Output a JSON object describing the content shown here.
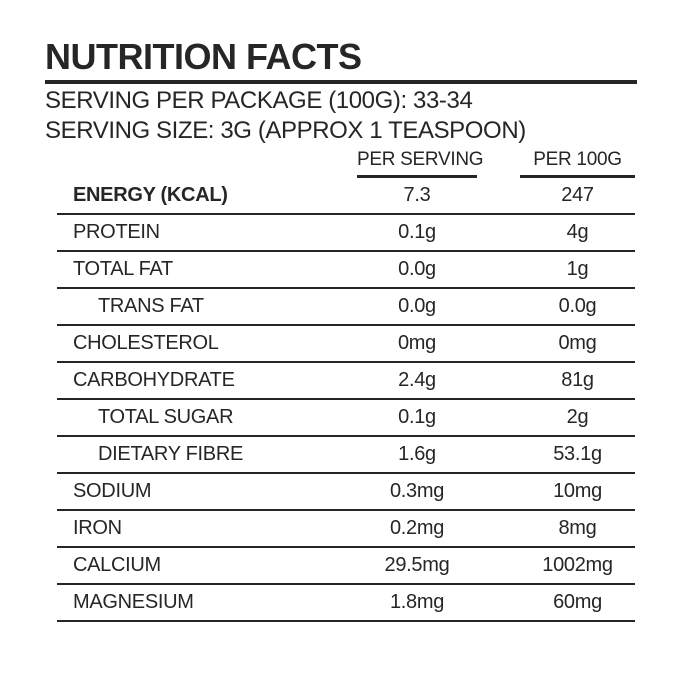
{
  "label": {
    "title": "NUTRITION FACTS",
    "serving_per_package": "SERVING PER PACKAGE (100G): 33-34",
    "serving_size": "SERVING SIZE: 3G (APPROX 1 TEASPOON)",
    "columns": {
      "per_serving": "PER SERVING",
      "per_100g": "PER 100G"
    },
    "rows": [
      {
        "name": "ENERGY (KCAL)",
        "bold": true,
        "indent": false,
        "per_serving": "7.3",
        "per_100g": "247"
      },
      {
        "name": "PROTEIN",
        "bold": false,
        "indent": false,
        "per_serving": "0.1g",
        "per_100g": "4g"
      },
      {
        "name": "TOTAL FAT",
        "bold": false,
        "indent": false,
        "per_serving": "0.0g",
        "per_100g": "1g"
      },
      {
        "name": "TRANS FAT",
        "bold": false,
        "indent": true,
        "per_serving": "0.0g",
        "per_100g": "0.0g"
      },
      {
        "name": "CHOLESTEROL",
        "bold": false,
        "indent": false,
        "per_serving": "0mg",
        "per_100g": "0mg"
      },
      {
        "name": "CARBOHYDRATE",
        "bold": false,
        "indent": false,
        "per_serving": "2.4g",
        "per_100g": "81g"
      },
      {
        "name": "TOTAL SUGAR",
        "bold": false,
        "indent": true,
        "per_serving": "0.1g",
        "per_100g": "2g"
      },
      {
        "name": "DIETARY FIBRE",
        "bold": false,
        "indent": true,
        "per_serving": "1.6g",
        "per_100g": "53.1g"
      },
      {
        "name": "SODIUM",
        "bold": false,
        "indent": false,
        "per_serving": "0.3mg",
        "per_100g": "10mg"
      },
      {
        "name": "IRON",
        "bold": false,
        "indent": false,
        "per_serving": "0.2mg",
        "per_100g": "8mg"
      },
      {
        "name": "CALCIUM",
        "bold": false,
        "indent": false,
        "per_serving": "29.5mg",
        "per_100g": "1002mg"
      },
      {
        "name": "MAGNESIUM",
        "bold": false,
        "indent": false,
        "per_serving": "1.8mg",
        "per_100g": "60mg"
      }
    ]
  },
  "colors": {
    "ink": "#262626",
    "background": "#ffffff"
  }
}
